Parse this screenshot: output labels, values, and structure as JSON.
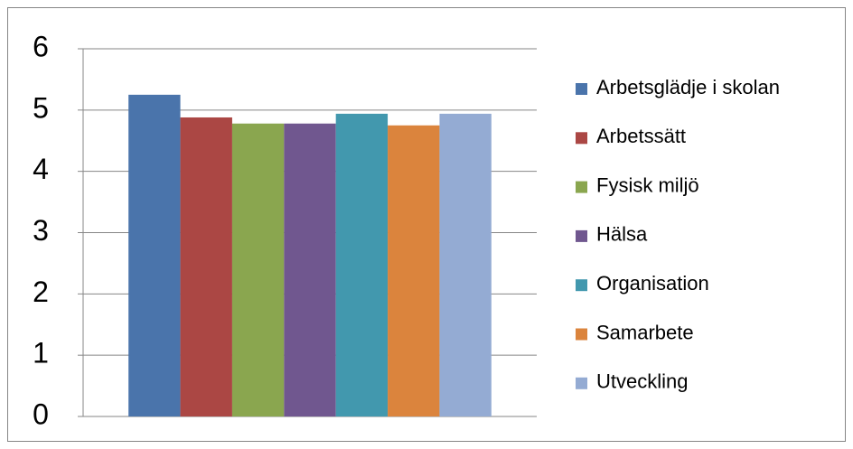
{
  "chart_data": {
    "type": "bar",
    "categories": [
      null
    ],
    "series": [
      {
        "name": "Arbetsglädje i skolan",
        "color": "#4a74ab",
        "values": [
          5.25
        ]
      },
      {
        "name": "Arbetssätt",
        "color": "#ab4744",
        "values": [
          4.88
        ]
      },
      {
        "name": "Fysisk miljö",
        "color": "#8aa64f",
        "values": [
          4.78
        ]
      },
      {
        "name": "Hälsa",
        "color": "#70578f",
        "values": [
          4.78
        ]
      },
      {
        "name": "Organisation",
        "color": "#4298ae",
        "values": [
          4.94
        ]
      },
      {
        "name": "Samarbete",
        "color": "#db843d",
        "values": [
          4.75
        ]
      },
      {
        "name": "Utveckling",
        "color": "#94abd3",
        "values": [
          4.94
        ]
      }
    ],
    "ylim": [
      0,
      6
    ],
    "yticks": [
      0,
      1,
      2,
      3,
      4,
      5,
      6
    ],
    "grid": true,
    "legend": "right"
  }
}
